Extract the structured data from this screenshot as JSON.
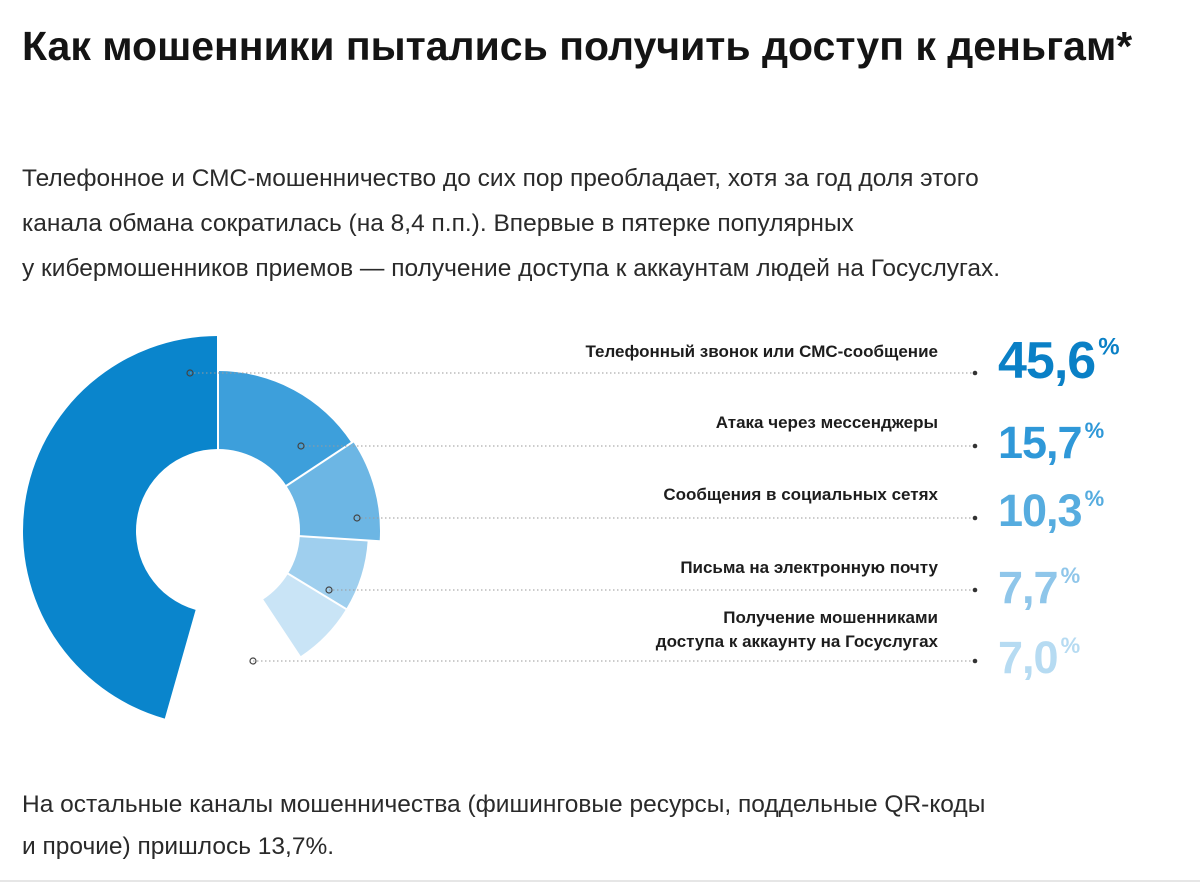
{
  "heading": "Как мошенники пытались получить доступ к деньгам*",
  "intro": [
    "Телефонное и СМС-мошенничество до сих пор преобладает, хотя за год доля этого",
    "канала обмана сократилась (на 8,4 п.п.). Впервые в пятерке популярных",
    "у кибермошенников приемов — получение доступа к аккаунтам людей на Госуслугах."
  ],
  "chart_data": {
    "type": "pie",
    "categories": [
      "Телефонный звонок или СМС-сообщение",
      "Атака через мессенджеры",
      "Сообщения в социальных сетях",
      "Письма на электронную почту",
      "Получение мошенниками доступа к аккаунту на Госуслугах"
    ],
    "label_lines": [
      [
        "Телефонный звонок или СМС-сообщение"
      ],
      [
        "Атака через мессенджеры"
      ],
      [
        "Сообщения в социальных сетях"
      ],
      [
        "Письма на электронную почту"
      ],
      [
        "Получение мошенниками",
        "доступа к аккаунту на Госуслугах"
      ]
    ],
    "values": [
      45.6,
      15.7,
      10.3,
      7.7,
      7.0
    ],
    "value_labels": [
      "45,6",
      "15,7",
      "10,3",
      "7,7",
      "7,0"
    ],
    "unit": "%",
    "colors": [
      "#0a85cc",
      "#3d9fdb",
      "#6cb6e4",
      "#9fcfee",
      "#c9e4f6"
    ],
    "value_colors": [
      "#0a80c6",
      "#2f98d8",
      "#56acdf",
      "#8fc6ea",
      "#b6dbf2"
    ]
  },
  "footer": [
    "На остальные каналы мошенничества (фишинговые ресурсы, поддельные QR-коды",
    "и прочие) пришлось 13,7%."
  ]
}
